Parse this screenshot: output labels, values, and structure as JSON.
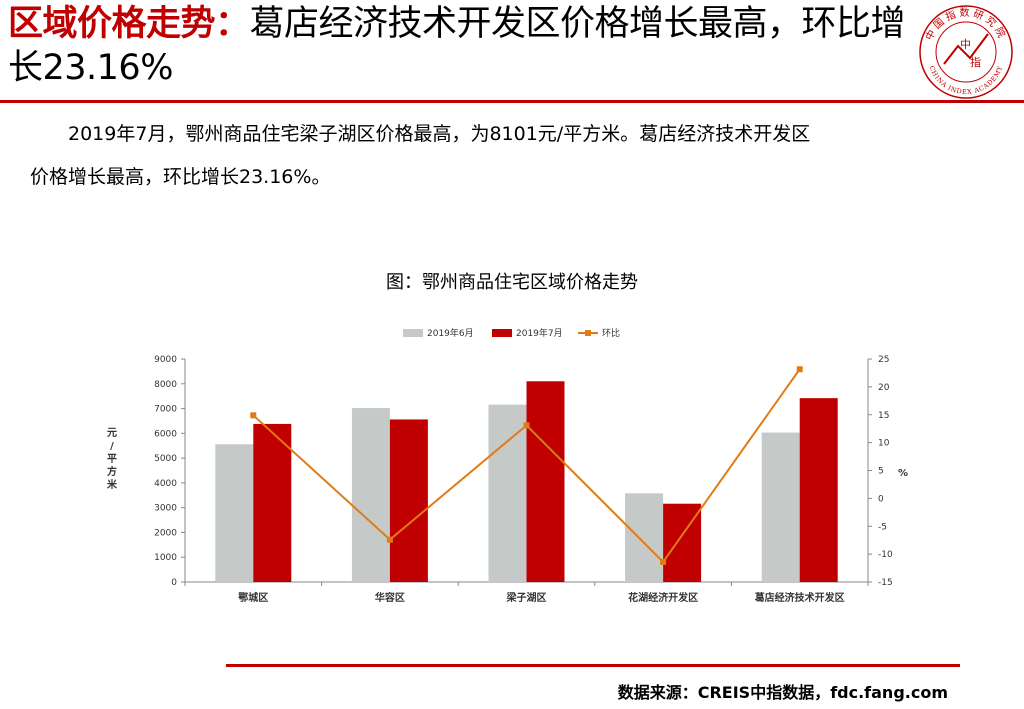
{
  "title": {
    "red_part": "区域价格走势：",
    "black_part": "葛店经济技术开发区价格增长最高，环比增长23.16%"
  },
  "logo": {
    "cn_text": "中国指数研究院",
    "en_text": "CHINA INDEX ACADEMY",
    "center_char_1": "中",
    "center_char_2": "指"
  },
  "paragraph": {
    "line1": "2019年7月，鄂州商品住宅梁子湖区价格最高，为8101元/平方米。葛店经济技术开发区",
    "line2": "价格增长最高，环比增长23.16%。"
  },
  "chart_title": "图：鄂州商品住宅区域价格走势",
  "source": "数据来源：CREIS中指数据，fdc.fang.com",
  "colors": {
    "brand_red": "#c00000",
    "bar_june": "#c5cac8",
    "bar_july": "#c00000",
    "line_mom": "#e07b17"
  },
  "chart_data": {
    "type": "bar",
    "categories": [
      "鄂城区",
      "华容区",
      "梁子湖区",
      "花湖经济开发区",
      "葛店经济技术开发区"
    ],
    "series": [
      {
        "name": "2019年6月",
        "type": "bar",
        "axis": "left",
        "values": [
          5560,
          7020,
          7160,
          3580,
          6030
        ]
      },
      {
        "name": "2019年7月",
        "type": "bar",
        "axis": "left",
        "values": [
          6380,
          6560,
          8101,
          3160,
          7420
        ]
      },
      {
        "name": "环比",
        "type": "line",
        "axis": "right",
        "values": [
          14.9,
          -7.4,
          13.1,
          -11.4,
          23.16
        ]
      }
    ],
    "ylabel_left": "元/平方米",
    "ylabel_right": "%",
    "ylim_left": [
      0,
      9000
    ],
    "ylim_right": [
      -15,
      25
    ],
    "yticks_left": [
      0,
      1000,
      2000,
      3000,
      4000,
      5000,
      6000,
      7000,
      8000,
      9000
    ],
    "yticks_right": [
      -15,
      -10,
      -5,
      0,
      5,
      10,
      15,
      20,
      25
    ],
    "legend_position": "top-center",
    "grid": false
  }
}
